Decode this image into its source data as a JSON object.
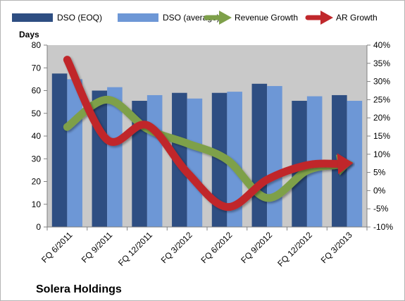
{
  "company_label": "Solera Holdings",
  "chart_data": {
    "type": "bar",
    "title": "",
    "ylabel": "Days",
    "xlabel": "",
    "categories": [
      "FQ 6/2011",
      "FQ 9/2011",
      "FQ 12/2011",
      "FQ 3/2012",
      "FQ 6/2012",
      "FQ 9/2012",
      "FQ 12/2012",
      "FQ 3/2013"
    ],
    "ylim": [
      0,
      80
    ],
    "yticks": [
      "0",
      "10",
      "20",
      "30",
      "40",
      "50",
      "60",
      "70",
      "80"
    ],
    "y2lim": [
      -10,
      40
    ],
    "y2ticks": [
      "-10%",
      "-5%",
      "0%",
      "5%",
      "10%",
      "15%",
      "20%",
      "25%",
      "30%",
      "35%",
      "40%"
    ],
    "grid": false,
    "legend_position": "top",
    "series": [
      {
        "name": "DSO (EOQ)",
        "type": "bar",
        "axis": "left",
        "color": "#2e4e82",
        "values": [
          67.5,
          60,
          55.5,
          59,
          59,
          63,
          55.5,
          58
        ]
      },
      {
        "name": "DSO (average)",
        "type": "bar",
        "axis": "left",
        "color": "#6d97d6",
        "values": [
          65,
          61.5,
          58,
          56.5,
          59.5,
          62,
          57.5,
          55.5
        ]
      },
      {
        "name": "Revenue Growth",
        "type": "line",
        "axis": "right",
        "color": "#7ea04a",
        "values": [
          17.5,
          25,
          17,
          13,
          8.5,
          -2,
          5.5,
          7.5
        ]
      },
      {
        "name": "AR Growth",
        "type": "line",
        "axis": "right",
        "color": "#c0282c",
        "values": [
          36,
          14,
          18,
          5,
          -4.5,
          3,
          7,
          7.5
        ]
      }
    ]
  }
}
